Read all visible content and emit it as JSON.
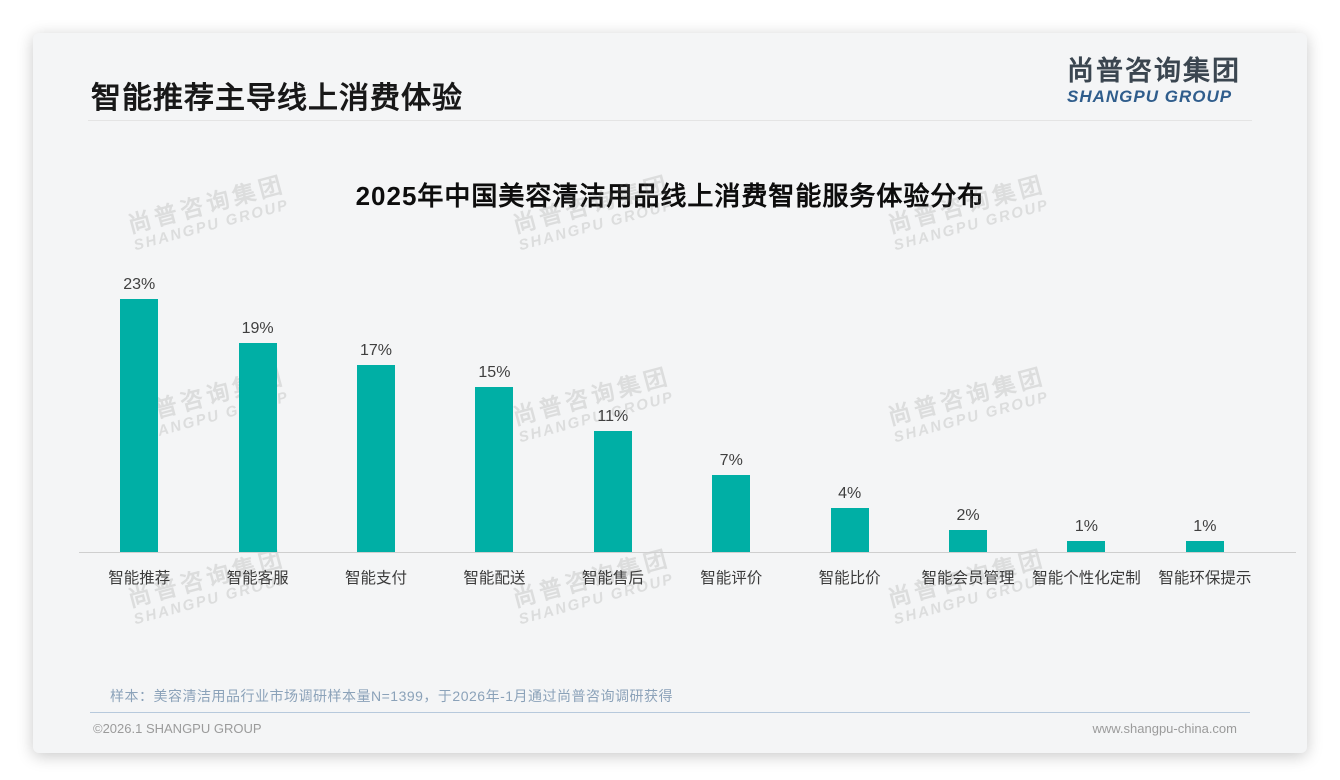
{
  "header": {
    "title": "智能推荐主导线上消费体验",
    "logo_cn": "尚普咨询集团",
    "logo_en": "SHANGPU GROUP"
  },
  "watermark": {
    "line1": "尚普咨询集团",
    "line2": "SHANGPU GROUP"
  },
  "chart_data": {
    "type": "bar",
    "title": "2025年中国美容清洁用品线上消费智能服务体验分布",
    "categories": [
      "智能推荐",
      "智能客服",
      "智能支付",
      "智能配送",
      "智能售后",
      "智能评价",
      "智能比价",
      "智能会员管理",
      "智能个性化定制",
      "智能环保提示"
    ],
    "values": [
      23,
      19,
      17,
      15,
      11,
      7,
      4,
      2,
      1,
      1
    ],
    "data_labels": [
      "23%",
      "19%",
      "17%",
      "15%",
      "11%",
      "7%",
      "4%",
      "2%",
      "1%",
      "1%"
    ],
    "unit": "%",
    "bar_color": "#00afa5",
    "ylim": [
      0,
      25
    ],
    "grid": false,
    "legend_position": "none",
    "xlabel": "",
    "ylabel": ""
  },
  "footer": {
    "note": "样本：美容清洁用品行业市场调研样本量N=1399，于2026年-1月通过尚普咨询调研获得",
    "copyright": "©2026.1 SHANGPU GROUP",
    "website": "www.shangpu-china.com"
  },
  "colors": {
    "bar_teal": "#00afa5",
    "logo_blue": "#2f5d8c",
    "note_blue_gray": "#8ba2b9",
    "card_bg": "#f4f5f6"
  }
}
